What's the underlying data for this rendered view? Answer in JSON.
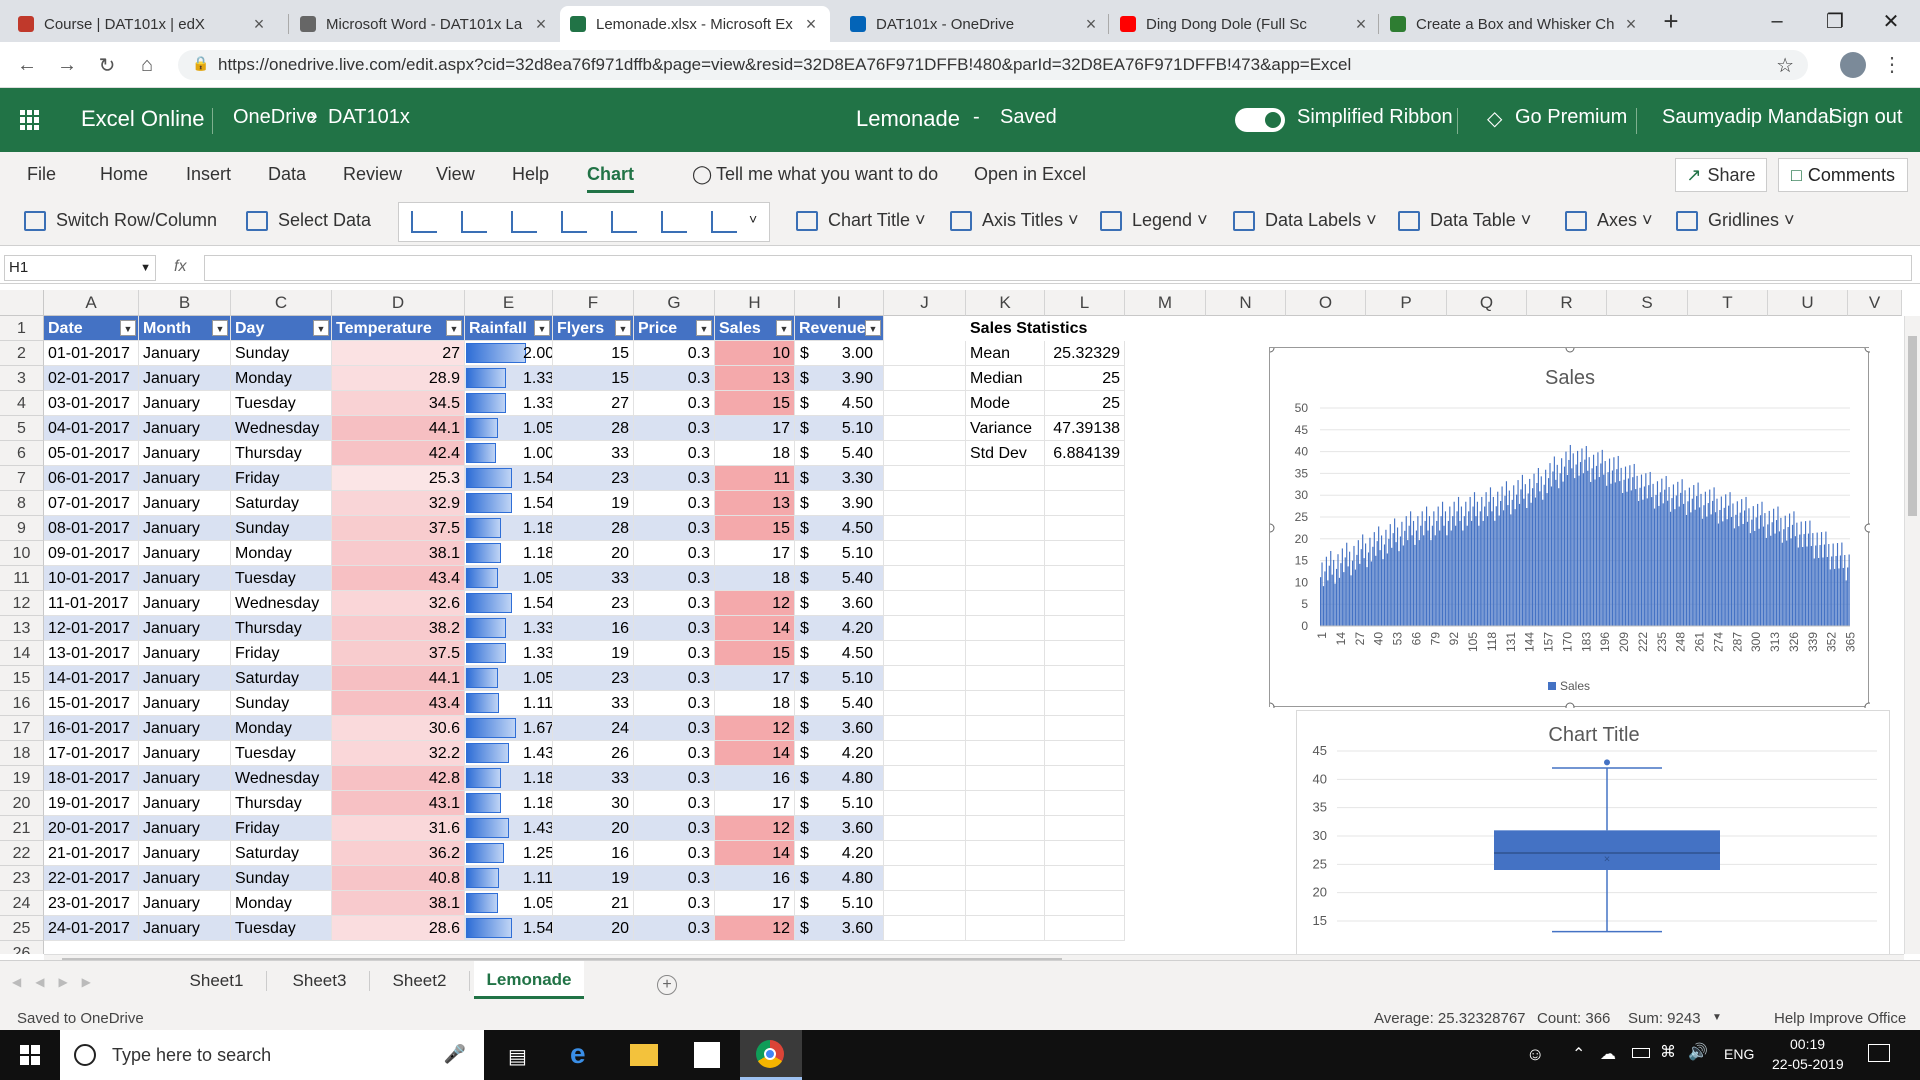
{
  "browser": {
    "tabs": [
      {
        "title": "Course | DAT101x | edX",
        "icon": "edx-icon",
        "active": false
      },
      {
        "title": "Microsoft Word - DAT101x La",
        "icon": "globe-icon",
        "active": false
      },
      {
        "title": "Lemonade.xlsx - Microsoft Ex",
        "icon": "excel-icon",
        "active": true
      },
      {
        "title": "DAT101x - OneDrive",
        "icon": "onedrive-icon",
        "active": false
      },
      {
        "title": "Ding Dong Dole (Full Sc",
        "icon": "youtube-icon",
        "active": false
      },
      {
        "title": "Create a Box and Whisker Ch",
        "icon": "box-icon",
        "active": false
      }
    ],
    "url": "https://onedrive.live.com/edit.aspx?cid=32d8ea76f971dffb&page=view&resid=32D8EA76F971DFFB!480&parId=32D8EA76F971DFFB!473&app=Excel"
  },
  "excel": {
    "app_name": "Excel Online",
    "breadcrumb_root": "OneDrive",
    "breadcrumb_folder": "DAT101x",
    "doc_title": "Lemonade",
    "save_state": "Saved",
    "simplified_ribbon": "Simplified Ribbon",
    "go_premium": "Go Premium",
    "user": "Saumyadip Mandal",
    "sign_out": "Sign out",
    "menu": [
      "File",
      "Home",
      "Insert",
      "Data",
      "Review",
      "View",
      "Help",
      "Chart"
    ],
    "active_menu": "Chart",
    "tell_me": "Tell me what you want to do",
    "open_in_excel": "Open in Excel",
    "share": "Share",
    "comments": "Comments",
    "ribbon": {
      "switch": "Switch Row/Column",
      "select_data": "Select Data",
      "chart_title": "Chart Title",
      "axis_titles": "Axis Titles",
      "legend": "Legend",
      "data_labels": "Data Labels",
      "data_table": "Data Table",
      "axes": "Axes",
      "gridlines": "Gridlines"
    },
    "name_box": "H1",
    "fx": "fx",
    "columns": [
      "A",
      "B",
      "C",
      "D",
      "E",
      "F",
      "G",
      "H",
      "I",
      "J",
      "K",
      "L",
      "M",
      "N",
      "O",
      "P",
      "Q",
      "R",
      "S",
      "T",
      "U",
      "V"
    ],
    "headers": [
      "Date",
      "Month",
      "Day",
      "Temperature",
      "Rainfall",
      "Flyers",
      "Price",
      "Sales",
      "Revenue"
    ],
    "rows": [
      [
        "01-01-2017",
        "January",
        "Sunday",
        "27",
        "2.00",
        "15",
        "0.3",
        "10",
        "3.00"
      ],
      [
        "02-01-2017",
        "January",
        "Monday",
        "28.9",
        "1.33",
        "15",
        "0.3",
        "13",
        "3.90"
      ],
      [
        "03-01-2017",
        "January",
        "Tuesday",
        "34.5",
        "1.33",
        "27",
        "0.3",
        "15",
        "4.50"
      ],
      [
        "04-01-2017",
        "January",
        "Wednesday",
        "44.1",
        "1.05",
        "28",
        "0.3",
        "17",
        "5.10"
      ],
      [
        "05-01-2017",
        "January",
        "Thursday",
        "42.4",
        "1.00",
        "33",
        "0.3",
        "18",
        "5.40"
      ],
      [
        "06-01-2017",
        "January",
        "Friday",
        "25.3",
        "1.54",
        "23",
        "0.3",
        "11",
        "3.30"
      ],
      [
        "07-01-2017",
        "January",
        "Saturday",
        "32.9",
        "1.54",
        "19",
        "0.3",
        "13",
        "3.90"
      ],
      [
        "08-01-2017",
        "January",
        "Sunday",
        "37.5",
        "1.18",
        "28",
        "0.3",
        "15",
        "4.50"
      ],
      [
        "09-01-2017",
        "January",
        "Monday",
        "38.1",
        "1.18",
        "20",
        "0.3",
        "17",
        "5.10"
      ],
      [
        "10-01-2017",
        "January",
        "Tuesday",
        "43.4",
        "1.05",
        "33",
        "0.3",
        "18",
        "5.40"
      ],
      [
        "11-01-2017",
        "January",
        "Wednesday",
        "32.6",
        "1.54",
        "23",
        "0.3",
        "12",
        "3.60"
      ],
      [
        "12-01-2017",
        "January",
        "Thursday",
        "38.2",
        "1.33",
        "16",
        "0.3",
        "14",
        "4.20"
      ],
      [
        "13-01-2017",
        "January",
        "Friday",
        "37.5",
        "1.33",
        "19",
        "0.3",
        "15",
        "4.50"
      ],
      [
        "14-01-2017",
        "January",
        "Saturday",
        "44.1",
        "1.05",
        "23",
        "0.3",
        "17",
        "5.10"
      ],
      [
        "15-01-2017",
        "January",
        "Sunday",
        "43.4",
        "1.11",
        "33",
        "0.3",
        "18",
        "5.40"
      ],
      [
        "16-01-2017",
        "January",
        "Monday",
        "30.6",
        "1.67",
        "24",
        "0.3",
        "12",
        "3.60"
      ],
      [
        "17-01-2017",
        "January",
        "Tuesday",
        "32.2",
        "1.43",
        "26",
        "0.3",
        "14",
        "4.20"
      ],
      [
        "18-01-2017",
        "January",
        "Wednesday",
        "42.8",
        "1.18",
        "33",
        "0.3",
        "16",
        "4.80"
      ],
      [
        "19-01-2017",
        "January",
        "Thursday",
        "43.1",
        "1.18",
        "30",
        "0.3",
        "17",
        "5.10"
      ],
      [
        "20-01-2017",
        "January",
        "Friday",
        "31.6",
        "1.43",
        "20",
        "0.3",
        "12",
        "3.60"
      ],
      [
        "21-01-2017",
        "January",
        "Saturday",
        "36.2",
        "1.25",
        "16",
        "0.3",
        "14",
        "4.20"
      ],
      [
        "22-01-2017",
        "January",
        "Sunday",
        "40.8",
        "1.11",
        "19",
        "0.3",
        "16",
        "4.80"
      ],
      [
        "23-01-2017",
        "January",
        "Monday",
        "38.1",
        "1.05",
        "21",
        "0.3",
        "17",
        "5.10"
      ],
      [
        "24-01-2017",
        "January",
        "Tuesday",
        "28.6",
        "1.54",
        "20",
        "0.3",
        "12",
        "3.60"
      ]
    ],
    "currency": "$",
    "stats": {
      "title": "Sales Statistics",
      "items": [
        {
          "label": "Mean",
          "value": "25.32329"
        },
        {
          "label": "Median",
          "value": "25"
        },
        {
          "label": "Mode",
          "value": "25"
        },
        {
          "label": "Variance",
          "value": "47.39138"
        },
        {
          "label": "Std Dev",
          "value": "6.884139"
        }
      ]
    },
    "sheets": [
      "Sheet1",
      "Sheet3",
      "Sheet2",
      "Lemonade"
    ],
    "active_sheet": "Lemonade",
    "status_left": "Saved to OneDrive",
    "status_avg": "Average: 25.32328767",
    "status_count": "Count: 366",
    "status_sum": "Sum: 9243",
    "help_improve": "Help Improve Office"
  },
  "chart_data": [
    {
      "type": "bar",
      "title": "Sales",
      "legend": "Sales",
      "legend_position": "bottom",
      "ylim": [
        0,
        50
      ],
      "yticks": [
        0,
        5,
        10,
        15,
        20,
        25,
        30,
        35,
        40,
        45,
        50
      ],
      "xticks": [
        "1",
        "14",
        "27",
        "40",
        "53",
        "66",
        "79",
        "92",
        "105",
        "118",
        "131",
        "144",
        "157",
        "170",
        "183",
        "196",
        "209",
        "222",
        "235",
        "248",
        "261",
        "274",
        "287",
        "300",
        "313",
        "326",
        "339",
        "352",
        "365"
      ],
      "n_points": 365,
      "series": [
        {
          "name": "Sales",
          "profile": [
            {
              "day": 1,
              "value": 12
            },
            {
              "day": 30,
              "value": 17
            },
            {
              "day": 60,
              "value": 22
            },
            {
              "day": 90,
              "value": 25
            },
            {
              "day": 120,
              "value": 28
            },
            {
              "day": 150,
              "value": 32
            },
            {
              "day": 175,
              "value": 38
            },
            {
              "day": 200,
              "value": 36
            },
            {
              "day": 230,
              "value": 31
            },
            {
              "day": 260,
              "value": 29
            },
            {
              "day": 300,
              "value": 25
            },
            {
              "day": 330,
              "value": 22
            },
            {
              "day": 365,
              "value": 14
            }
          ]
        }
      ]
    },
    {
      "type": "boxplot",
      "title": "Chart Title",
      "ylim": [
        15,
        45
      ],
      "yticks": [
        15,
        20,
        25,
        30,
        35,
        40,
        45
      ],
      "min": 14,
      "q1": 24,
      "median": 27,
      "mean": 26,
      "q3": 31,
      "max": 42,
      "outliers": [
        43
      ]
    }
  ],
  "taskbar": {
    "search": "Type here to search",
    "lang": "ENG",
    "time": "00:19",
    "date": "22-05-2019"
  },
  "colors": {
    "excel_green": "#217346",
    "header_blue": "#4472c4",
    "bar_blue": "#4472c4",
    "temp_pink": "#f8cbcc",
    "sales_pink": "#f4b6b8",
    "row_band": "#d9e1f2"
  }
}
